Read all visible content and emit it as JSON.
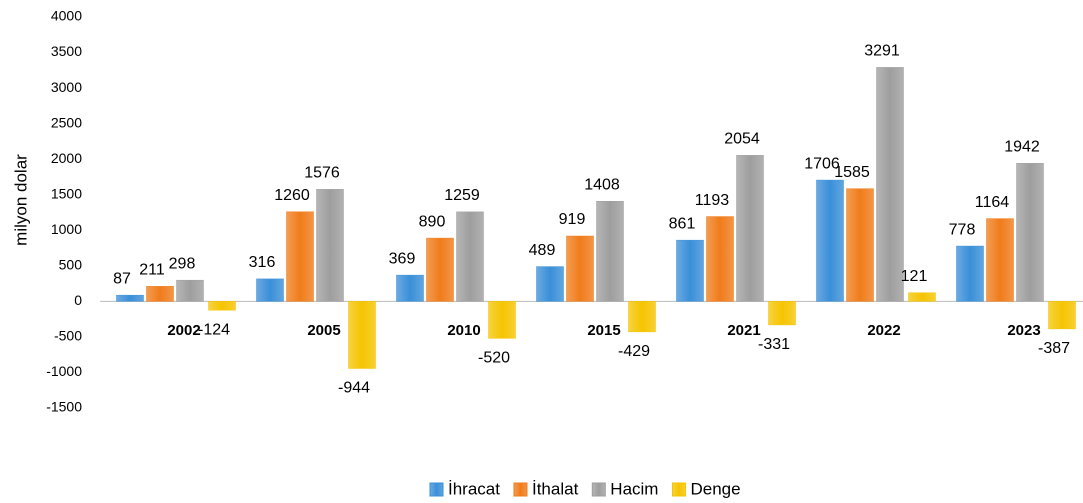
{
  "chart_data": {
    "type": "bar",
    "y_label": "milyon dolar",
    "categories": [
      "2002",
      "2005",
      "2010",
      "2015",
      "2021",
      "2022",
      "2023"
    ],
    "series": [
      {
        "name": "İhracat",
        "color": "#3a8fd8",
        "values": [
          87,
          316,
          369,
          489,
          861,
          1706,
          778
        ]
      },
      {
        "name": "İthalat",
        "color": "#f07c1a",
        "values": [
          211,
          1260,
          890,
          919,
          1193,
          1585,
          1164
        ]
      },
      {
        "name": "Hacim",
        "color": "#9e9e9e",
        "values": [
          298,
          1576,
          1259,
          1408,
          2054,
          3291,
          1942
        ]
      },
      {
        "name": "Denge",
        "color": "#f5c400",
        "values": [
          -124,
          -944,
          -520,
          -429,
          -331,
          121,
          -387
        ]
      }
    ],
    "ylim": [
      -1500,
      4000
    ],
    "yticks": [
      -1500,
      -1000,
      -500,
      0,
      500,
      1000,
      1500,
      2000,
      2500,
      3000,
      3500,
      4000
    ],
    "grid": false,
    "legend": "bottom"
  }
}
